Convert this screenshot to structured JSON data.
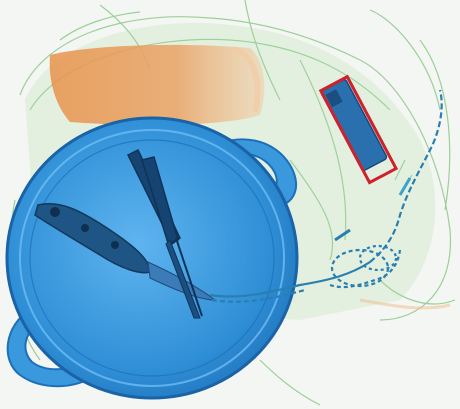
{
  "scene": {
    "kind": "x-ray baggage scan",
    "objects": [
      {
        "name": "plastic-bag",
        "color": "#7fc27a"
      },
      {
        "name": "organic-block",
        "color": "#e89a52"
      },
      {
        "name": "cooking-pot",
        "color": "#2f8fd6"
      },
      {
        "name": "folding-knife",
        "color": "#1d4f7c"
      },
      {
        "name": "scissors",
        "color": "#163e66"
      },
      {
        "name": "chain",
        "color": "#2a7fb0"
      },
      {
        "name": "usb-drive",
        "color": "#2a6fae"
      }
    ],
    "detection_box_color": "#d0212a"
  }
}
